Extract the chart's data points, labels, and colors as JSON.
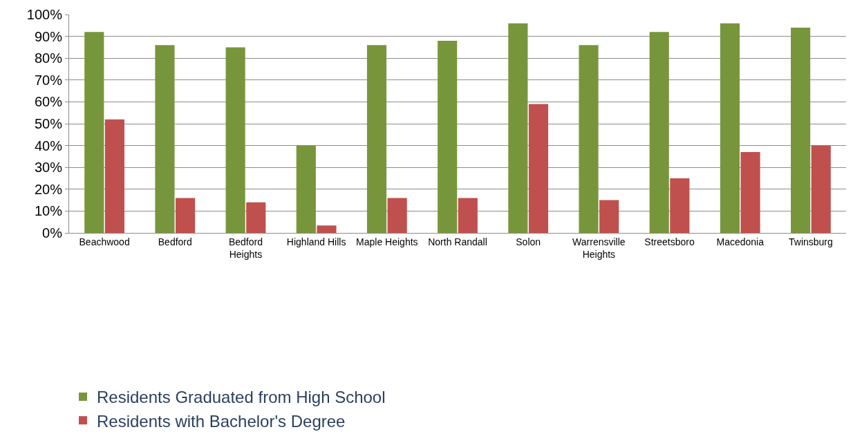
{
  "chart_data": {
    "type": "bar",
    "categories": [
      "Beachwood",
      "Bedford",
      "Bedford Heights",
      "Highland Hills",
      "Maple Heights",
      "North Randall",
      "Solon",
      "Warrensville Heights",
      "Streetsboro",
      "Macedonia",
      "Twinsburg"
    ],
    "series": [
      {
        "name": "Residents Graduated from High School",
        "color": "#77963b",
        "values": [
          92,
          86,
          85,
          40,
          86,
          88,
          96,
          86,
          92,
          96,
          94
        ]
      },
      {
        "name": "Residents with Bachelor's Degree",
        "color": "#c0504d",
        "values": [
          52,
          16,
          14,
          3.4,
          16,
          16,
          59,
          15,
          25,
          37,
          40
        ]
      }
    ],
    "ylim": [
      0,
      100
    ],
    "yticks": [
      {
        "value": 0,
        "label": "0%"
      },
      {
        "value": 10,
        "label": "10%"
      },
      {
        "value": 20,
        "label": "20%"
      },
      {
        "value": 30,
        "label": "30%"
      },
      {
        "value": 40,
        "label": "40%"
      },
      {
        "value": 50,
        "label": "50%"
      },
      {
        "value": 60,
        "label": "60%"
      },
      {
        "value": 70,
        "label": "70%"
      },
      {
        "value": 80,
        "label": "80%"
      },
      {
        "value": 90,
        "label": "90%"
      },
      {
        "value": 100,
        "label": "100%"
      }
    ],
    "grid": "y",
    "legend": "bottom"
  }
}
